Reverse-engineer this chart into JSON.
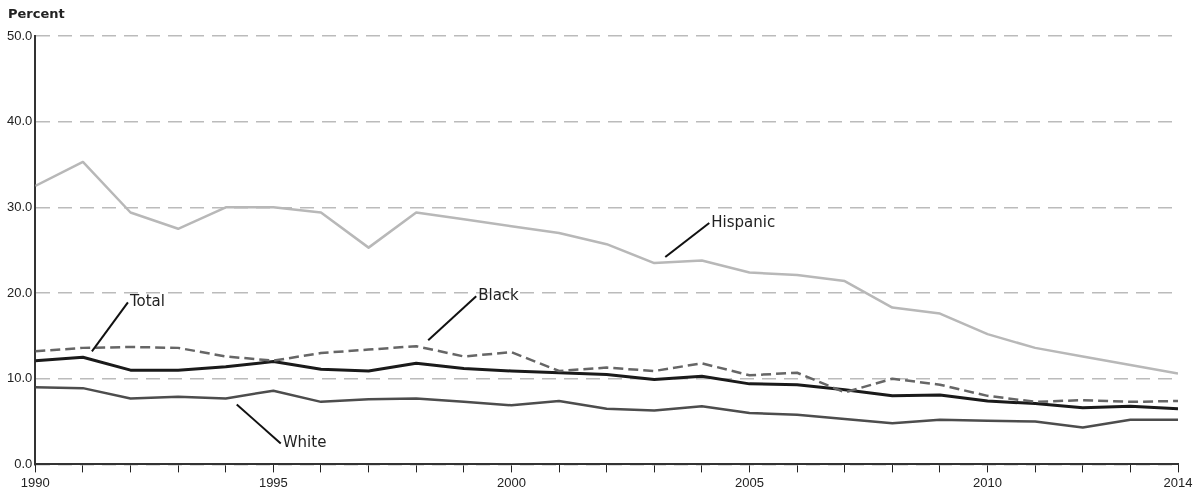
{
  "chart_data": {
    "type": "line",
    "ylabel": "Percent",
    "x": [
      1990,
      1991,
      1992,
      1993,
      1994,
      1995,
      1996,
      1997,
      1998,
      1999,
      2000,
      2001,
      2002,
      2003,
      2004,
      2005,
      2006,
      2007,
      2008,
      2009,
      2010,
      2011,
      2012,
      2013,
      2014
    ],
    "series": [
      {
        "name": "Hispanic",
        "color": "#b8b8b8",
        "line_style": "solid",
        "values": [
          32.5,
          35.3,
          29.4,
          27.5,
          30.0,
          30.0,
          29.4,
          25.3,
          29.4,
          28.6,
          27.8,
          27.0,
          25.7,
          23.5,
          23.8,
          22.4,
          22.1,
          21.4,
          18.3,
          17.6,
          15.2,
          13.6,
          12.6,
          11.6,
          10.6
        ]
      },
      {
        "name": "Black",
        "color": "#666666",
        "line_style": "dashed",
        "values": [
          13.2,
          13.6,
          13.7,
          13.6,
          12.6,
          12.1,
          13.0,
          13.4,
          13.8,
          12.6,
          13.1,
          10.9,
          11.3,
          10.9,
          11.8,
          10.4,
          10.7,
          8.4,
          10.0,
          9.3,
          8.0,
          7.3,
          7.5,
          7.3,
          7.4
        ]
      },
      {
        "name": "Total",
        "color": "#1a1a1a",
        "line_style": "solid",
        "values": [
          12.1,
          12.5,
          11.0,
          11.0,
          11.4,
          12.0,
          11.1,
          10.9,
          11.8,
          11.2,
          10.9,
          10.7,
          10.5,
          9.9,
          10.3,
          9.4,
          9.3,
          8.7,
          8.0,
          8.1,
          7.4,
          7.1,
          6.6,
          6.8,
          6.5
        ]
      },
      {
        "name": "White",
        "color": "#4d4d4d",
        "line_style": "solid",
        "values": [
          9.0,
          8.9,
          7.7,
          7.9,
          7.7,
          8.6,
          7.3,
          7.6,
          7.7,
          7.3,
          6.9,
          7.4,
          6.5,
          6.3,
          6.8,
          6.0,
          5.8,
          5.3,
          4.8,
          5.2,
          5.1,
          5.0,
          4.3,
          5.2,
          5.2
        ]
      }
    ],
    "xlim": [
      1990,
      2014
    ],
    "xticks": [
      1990,
      {
        "value": 1991,
        "label": null
      },
      {
        "value": 1992,
        "label": null
      },
      {
        "value": 1993,
        "label": null
      },
      {
        "value": 1994,
        "label": null
      },
      1995,
      {
        "value": 1996,
        "label": null
      },
      {
        "value": 1997,
        "label": null
      },
      {
        "value": 1998,
        "label": null
      },
      {
        "value": 1999,
        "label": null
      },
      2000,
      {
        "value": 2001,
        "label": null
      },
      {
        "value": 2002,
        "label": null
      },
      {
        "value": 2003,
        "label": null
      },
      {
        "value": 2004,
        "label": null
      },
      2005,
      {
        "value": 2006,
        "label": null
      },
      {
        "value": 2007,
        "label": null
      },
      {
        "value": 2008,
        "label": null
      },
      {
        "value": 2009,
        "label": null
      },
      2010,
      {
        "value": 2011,
        "label": null
      },
      {
        "value": 2012,
        "label": null
      },
      {
        "value": 2013,
        "label": null
      },
      2014
    ],
    "ylim": [
      0,
      50
    ],
    "yticks": [
      {
        "value": 0,
        "label": "0.0"
      },
      {
        "value": 10,
        "label": "10.0"
      },
      {
        "value": 20,
        "label": "20.0"
      },
      {
        "value": 30,
        "label": "30.0"
      },
      {
        "value": 40,
        "label": "40.0"
      },
      {
        "value": 50,
        "label": "50.0"
      }
    ],
    "grid": "y",
    "legend": false,
    "marker": "none"
  }
}
